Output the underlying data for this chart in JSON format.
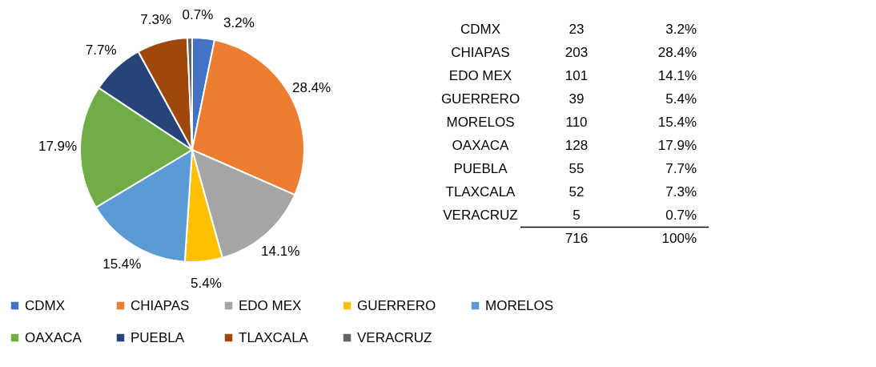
{
  "chart_data": {
    "type": "pie",
    "categories": [
      "CDMX",
      "CHIAPAS",
      "EDO MEX",
      "GUERRERO",
      "MORELOS",
      "OAXACA",
      "PUEBLA",
      "TLAXCALA",
      "VERACRUZ"
    ],
    "values": [
      3.2,
      28.4,
      14.1,
      5.4,
      15.4,
      17.9,
      7.7,
      7.3,
      0.7
    ],
    "value_labels": [
      "3.2%",
      "28.4%",
      "14.1%",
      "5.4%",
      "15.4%",
      "17.9%",
      "7.7%",
      "7.3%",
      "0.7%"
    ],
    "colors": [
      "#4472c4",
      "#ed7d31",
      "#a5a5a5",
      "#ffc000",
      "#5b9bd5",
      "#70ad47",
      "#264478",
      "#9e480e",
      "#636363"
    ],
    "annotations": [
      "23",
      "203",
      "101",
      "39",
      "110",
      "128",
      "55",
      "52",
      "5",
      "716",
      "100%"
    ],
    "legend": "bottom"
  }
}
